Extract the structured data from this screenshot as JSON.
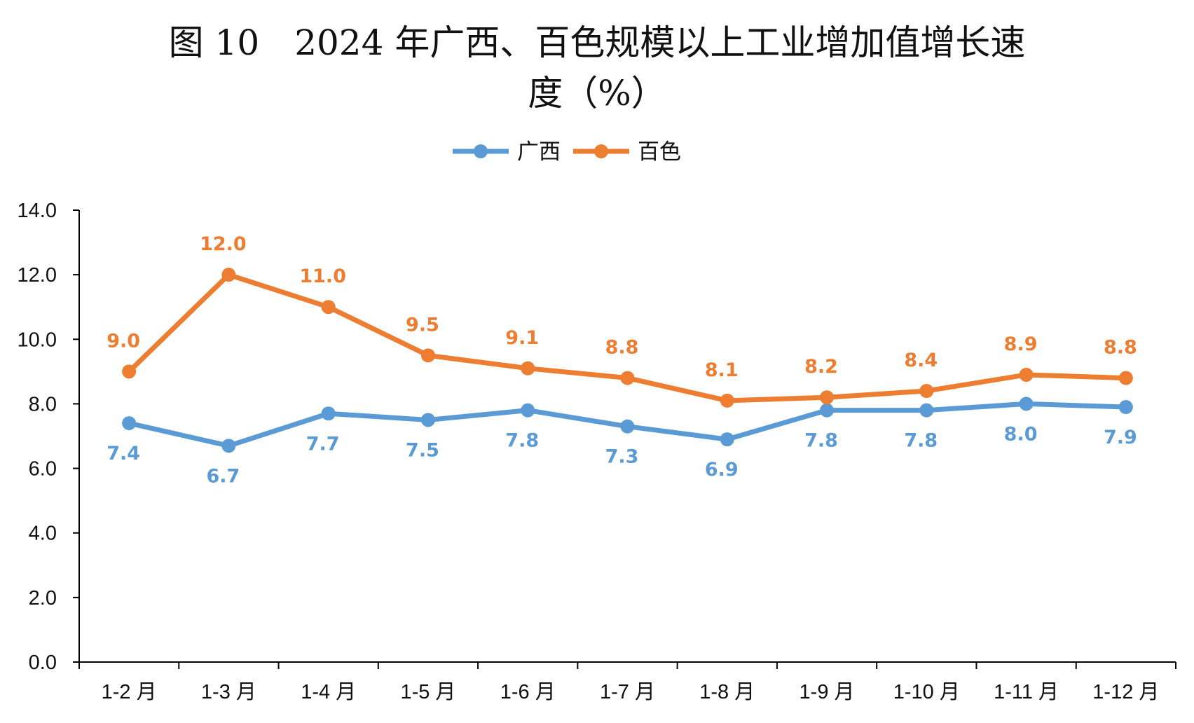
{
  "chart_data": {
    "type": "line",
    "title_line1": "图 10　2024 年广西、百色规模以上工业增加值增长速",
    "title_line2": "度（%）",
    "categories": [
      "1-2 月",
      "1-3 月",
      "1-4 月",
      "1-5 月",
      "1-6 月",
      "1-7 月",
      "1-8 月",
      "1-9 月",
      "1-10 月",
      "1-11 月",
      "1-12 月"
    ],
    "series": [
      {
        "name": "广西",
        "color": "#5B9BD5",
        "values": [
          7.4,
          6.7,
          7.7,
          7.5,
          7.8,
          7.3,
          6.9,
          7.8,
          7.8,
          8.0,
          7.9
        ],
        "labels": [
          "7.4",
          "6.7",
          "7.7",
          "7.5",
          "7.8",
          "7.3",
          "6.9",
          "7.8",
          "7.8",
          "8.0",
          "7.9"
        ]
      },
      {
        "name": "百色",
        "color": "#ED7D31",
        "values": [
          9.0,
          12.0,
          11.0,
          9.5,
          9.1,
          8.8,
          8.1,
          8.2,
          8.4,
          8.9,
          8.8
        ],
        "labels": [
          "9.0",
          "12.0",
          "11.0",
          "9.5",
          "9.1",
          "8.8",
          "8.1",
          "8.2",
          "8.4",
          "8.9",
          "8.8"
        ]
      }
    ],
    "yticks": [
      "0.0",
      "2.0",
      "4.0",
      "6.0",
      "8.0",
      "10.0",
      "12.0",
      "14.0"
    ],
    "ylim": [
      0,
      14
    ],
    "xlabel": "",
    "ylabel": "",
    "legend": "top-center",
    "grid": false
  }
}
